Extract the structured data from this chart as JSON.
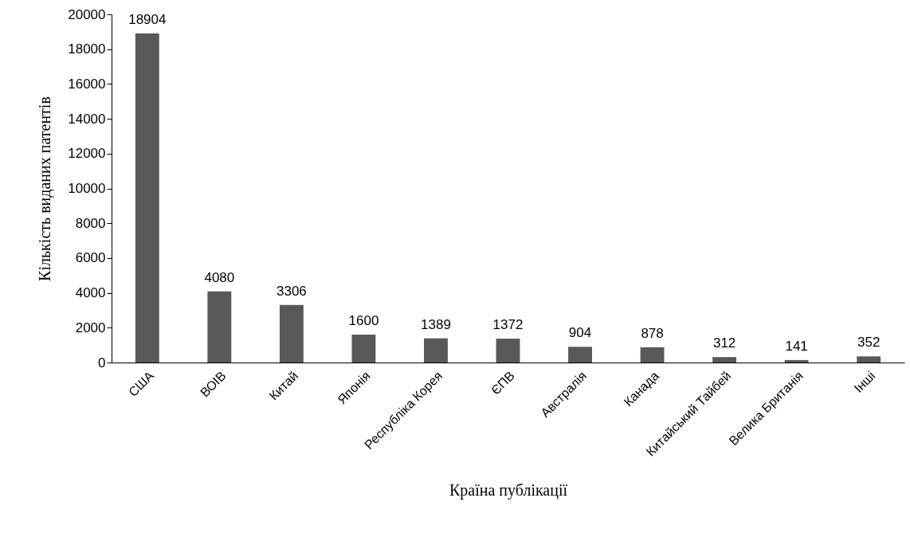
{
  "chart_data": {
    "type": "bar",
    "xlabel": "Країна публікації",
    "ylabel": "Кількість виданих патентів",
    "categories": [
      "США",
      "ВОІВ",
      "Китай",
      "Японія",
      "Республіка Корея",
      "ЄПВ",
      "Австралія",
      "Канада",
      "Китайський Тайбей",
      "Велика Британія",
      "Інші"
    ],
    "values": [
      18904,
      4080,
      3306,
      1600,
      1389,
      1372,
      904,
      878,
      312,
      141,
      352
    ],
    "color": "#595959",
    "ylim": [
      0,
      20000
    ],
    "yticks": [
      0,
      2000,
      4000,
      6000,
      8000,
      10000,
      12000,
      14000,
      16000,
      18000,
      20000
    ],
    "data_labels": true,
    "grid": false
  }
}
